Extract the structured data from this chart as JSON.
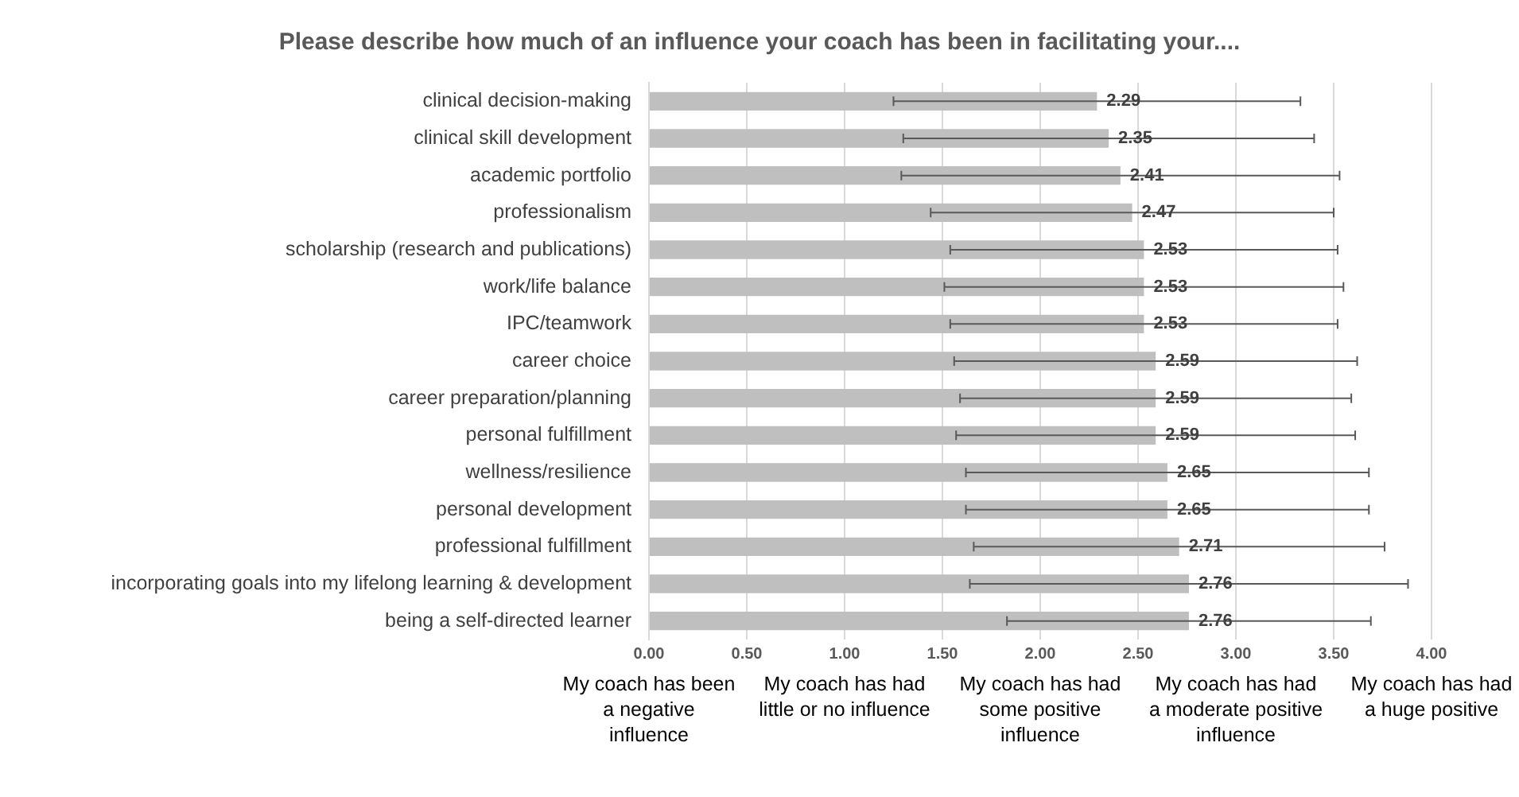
{
  "chart_data": {
    "type": "bar",
    "orientation": "horizontal",
    "title": "Please describe how much of an influence your coach has been in facilitating your....",
    "categories": [
      "clinical decision-making",
      "clinical skill development",
      "academic portfolio",
      "professionalism",
      "scholarship (research and publications)",
      "work/life balance",
      "IPC/teamwork",
      "career choice",
      "career preparation/planning",
      "personal fulfillment",
      "wellness/resilience",
      "personal development",
      "professional fulfillment",
      "incorporating goals into my lifelong learning & development",
      "being a self-directed learner"
    ],
    "values": [
      2.29,
      2.35,
      2.41,
      2.47,
      2.53,
      2.53,
      2.53,
      2.59,
      2.59,
      2.59,
      2.65,
      2.65,
      2.71,
      2.76,
      2.76
    ],
    "errors": [
      1.04,
      1.05,
      1.12,
      1.03,
      0.99,
      1.02,
      0.99,
      1.03,
      1.0,
      1.02,
      1.03,
      1.03,
      1.05,
      1.12,
      0.93
    ],
    "color": "#bfbfbf",
    "data_labels": true,
    "xlim": [
      0,
      4
    ],
    "xticks": [
      {
        "value": 0,
        "label": "0.00"
      },
      {
        "value": 0.5,
        "label": "0.50"
      },
      {
        "value": 1,
        "label": "1.00"
      },
      {
        "value": 1.5,
        "label": "1.50"
      },
      {
        "value": 2,
        "label": "2.00"
      },
      {
        "value": 2.5,
        "label": "2.50"
      },
      {
        "value": 3,
        "label": "3.00"
      },
      {
        "value": 3.5,
        "label": "3.50"
      },
      {
        "value": 4,
        "label": "4.00"
      }
    ],
    "grid": "x",
    "legend": false,
    "annotations": [
      "My coach has been a negative influence",
      "My coach has had little or no influence",
      "My coach has had some positive influence",
      "My coach has had a moderate positive influence",
      "My coach has had a huge positive"
    ]
  }
}
